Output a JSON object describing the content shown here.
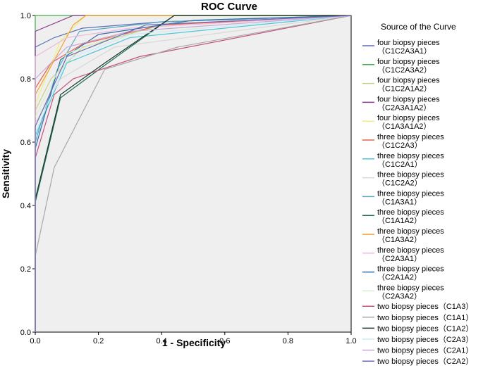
{
  "chart_data": {
    "type": "line",
    "title": "ROC Curve",
    "xlabel": "1 - Specificity",
    "ylabel": "Sensitivity",
    "xlim": [
      0,
      1
    ],
    "ylim": [
      0,
      1
    ],
    "x_ticks": [
      "0.0",
      "0.2",
      "0.4",
      "0.6",
      "0.8",
      "1.0"
    ],
    "y_ticks": [
      "0.0",
      "0.2",
      "0.4",
      "0.6",
      "0.8",
      "1.0"
    ],
    "legend_title": "Source of the Curve",
    "legend_position": "right",
    "series": [
      {
        "name": "four biopsy pieces (C1C2A3A1)",
        "label_line1": "four biopsy pieces",
        "label_line2": "（C1C2A3A1）",
        "color": "#5b6fb5",
        "points": [
          [
            0,
            0
          ],
          [
            0,
            0.9
          ],
          [
            0.06,
            0.93
          ],
          [
            0.15,
            0.96
          ],
          [
            0.4,
            0.98
          ],
          [
            1,
            1
          ]
        ]
      },
      {
        "name": "four biopsy pieces (C1C2A3A2)",
        "label_line1": "four biopsy pieces",
        "label_line2": "（C1C2A3A2）",
        "color": "#3fae4a",
        "points": [
          [
            0,
            0
          ],
          [
            0,
            1.0
          ],
          [
            1,
            1
          ]
        ]
      },
      {
        "name": "four biopsy pieces (C1C2A1A2)",
        "label_line1": "four biopsy pieces",
        "label_line2": "（C1C2A1A2）",
        "color": "#c9d08a",
        "points": [
          [
            0,
            0
          ],
          [
            0,
            0.7
          ],
          [
            0.05,
            0.8
          ],
          [
            0.15,
            0.9
          ],
          [
            0.4,
            0.97
          ],
          [
            1,
            1
          ]
        ]
      },
      {
        "name": "four biopsy pieces (C2A3A1A2)",
        "label_line1": "four biopsy pieces",
        "label_line2": "（C2A3A1A2）",
        "color": "#8b3a8e",
        "points": [
          [
            0,
            0
          ],
          [
            0,
            0.95
          ],
          [
            0.12,
            1.0
          ],
          [
            1,
            1
          ]
        ]
      },
      {
        "name": "four biopsy pieces (C1A3A1A2)",
        "label_line1": "four biopsy pieces",
        "label_line2": "（C1A3A1A2）",
        "color": "#eef080",
        "points": [
          [
            0,
            0
          ],
          [
            0,
            0.72
          ],
          [
            0.08,
            0.92
          ],
          [
            0.16,
            1.0
          ],
          [
            1,
            1
          ]
        ]
      },
      {
        "name": "three biopsy pieces (C1C2A3)",
        "label_line1": "three biopsy pieces",
        "label_line2": "（C1C2A3）",
        "color": "#e8604c",
        "points": [
          [
            0,
            0
          ],
          [
            0,
            0.77
          ],
          [
            0.05,
            0.85
          ],
          [
            0.15,
            0.91
          ],
          [
            0.4,
            0.97
          ],
          [
            1,
            1
          ]
        ]
      },
      {
        "name": "three biopsy pieces (C1C2A1)",
        "label_line1": "three biopsy pieces",
        "label_line2": "（C1C2A1）",
        "color": "#4fc6d8",
        "points": [
          [
            0,
            0
          ],
          [
            0,
            0.62
          ],
          [
            0.1,
            0.85
          ],
          [
            0.3,
            0.93
          ],
          [
            1,
            1
          ]
        ]
      },
      {
        "name": "three biopsy pieces (C1C2A2)",
        "label_line1": "three biopsy pieces",
        "label_line2": "（C1C2A2）",
        "color": "#d8d8d8",
        "points": [
          [
            0,
            0
          ],
          [
            0,
            0.66
          ],
          [
            0.08,
            0.8
          ],
          [
            0.25,
            0.9
          ],
          [
            1,
            1
          ]
        ]
      },
      {
        "name": "three biopsy pieces (C1A3A1)",
        "label_line1": "three biopsy pieces",
        "label_line2": "（C1A3A1）",
        "color": "#5aa6c4",
        "points": [
          [
            0,
            0
          ],
          [
            0,
            0.6
          ],
          [
            0.07,
            0.83
          ],
          [
            0.14,
            0.95
          ],
          [
            0.4,
            0.98
          ],
          [
            1,
            1
          ]
        ]
      },
      {
        "name": "three biopsy pieces (C1A1A2)",
        "label_line1": "three biopsy pieces",
        "label_line2": "（C1A1A2）",
        "color": "#1e6a52",
        "points": [
          [
            0,
            0
          ],
          [
            0,
            0.41
          ],
          [
            0.08,
            0.74
          ],
          [
            0.23,
            0.85
          ],
          [
            0.44,
            1.0
          ],
          [
            1,
            1
          ]
        ]
      },
      {
        "name": "three biopsy pieces (C1A3A2)",
        "label_line1": "three biopsy pieces",
        "label_line2": "（C1A3A2）",
        "color": "#f0a030",
        "points": [
          [
            0,
            0
          ],
          [
            0,
            0.75
          ],
          [
            0.05,
            0.84
          ],
          [
            0.12,
            0.97
          ],
          [
            0.16,
            1.0
          ],
          [
            1,
            1
          ]
        ]
      },
      {
        "name": "three biopsy pieces (C2A3A1)",
        "label_line1": "three biopsy pieces",
        "label_line2": "（C2A3A1）",
        "color": "#f2b8dc",
        "points": [
          [
            0,
            0
          ],
          [
            0,
            0.87
          ],
          [
            0.1,
            0.93
          ],
          [
            0.3,
            0.96
          ],
          [
            1,
            1
          ]
        ]
      },
      {
        "name": "three biopsy pieces (C2A1A2)",
        "label_line1": "three biopsy pieces",
        "label_line2": "（C2A1A2）",
        "color": "#2f6ea8",
        "points": [
          [
            0,
            0
          ],
          [
            0,
            0.58
          ],
          [
            0.08,
            0.86
          ],
          [
            0.2,
            0.94
          ],
          [
            0.5,
            0.985
          ],
          [
            1,
            1
          ]
        ]
      },
      {
        "name": "three biopsy pieces (C2A3A2)",
        "label_line1": "three biopsy pieces",
        "label_line2": "（C2A3A2）",
        "color": "#d6f0c8",
        "points": [
          [
            0,
            0
          ],
          [
            0,
            0.68
          ],
          [
            0.1,
            0.88
          ],
          [
            0.3,
            0.95
          ],
          [
            1,
            1
          ]
        ]
      },
      {
        "name": "two biopsy pieces (C1A3)",
        "label_line1": "two biopsy pieces（C1A3）",
        "label_line2": "",
        "color": "#c45080",
        "points": [
          [
            0,
            0
          ],
          [
            0,
            0.55
          ],
          [
            0.06,
            0.75
          ],
          [
            0.12,
            0.8
          ],
          [
            0.33,
            0.87
          ],
          [
            1,
            1
          ]
        ]
      },
      {
        "name": "two biopsy pieces (C1A1)",
        "label_line1": "two biopsy pieces（C1A1）",
        "label_line2": "",
        "color": "#a8a8a8",
        "points": [
          [
            0,
            0
          ],
          [
            0,
            0.24
          ],
          [
            0.06,
            0.52
          ],
          [
            0.22,
            0.83
          ],
          [
            0.45,
            0.9
          ],
          [
            1,
            1
          ]
        ]
      },
      {
        "name": "two biopsy pieces (C1A2)",
        "label_line1": "two biopsy pieces（C1A2）",
        "label_line2": "",
        "color": "#1a3a2a",
        "points": [
          [
            0,
            0
          ],
          [
            0,
            0.42
          ],
          [
            0.08,
            0.75
          ],
          [
            0.22,
            0.85
          ],
          [
            0.44,
            1.0
          ],
          [
            1,
            1
          ]
        ]
      },
      {
        "name": "two biopsy pieces (C2A3)",
        "label_line1": "two biopsy pieces（C2A3）",
        "label_line2": "",
        "color": "#c8eef4",
        "points": [
          [
            0,
            0
          ],
          [
            0,
            0.63
          ],
          [
            0.1,
            0.86
          ],
          [
            0.3,
            0.94
          ],
          [
            1,
            1
          ]
        ]
      },
      {
        "name": "two biopsy pieces (C2A1)",
        "label_line1": "two biopsy pieces（C2A1）",
        "label_line2": "",
        "color": "#c9a6d8",
        "points": [
          [
            0,
            0
          ],
          [
            0,
            0.8
          ],
          [
            0.1,
            0.9
          ],
          [
            0.3,
            0.95
          ],
          [
            1,
            1
          ]
        ]
      },
      {
        "name": "two biopsy pieces (C2A2)",
        "label_line1": "two biopsy pieces（C2A2）",
        "label_line2": "",
        "color": "#6b6bb5",
        "points": [
          [
            0,
            0
          ],
          [
            0,
            0.65
          ],
          [
            0.1,
            0.87
          ],
          [
            0.35,
            0.97
          ],
          [
            1,
            1
          ]
        ]
      }
    ]
  }
}
